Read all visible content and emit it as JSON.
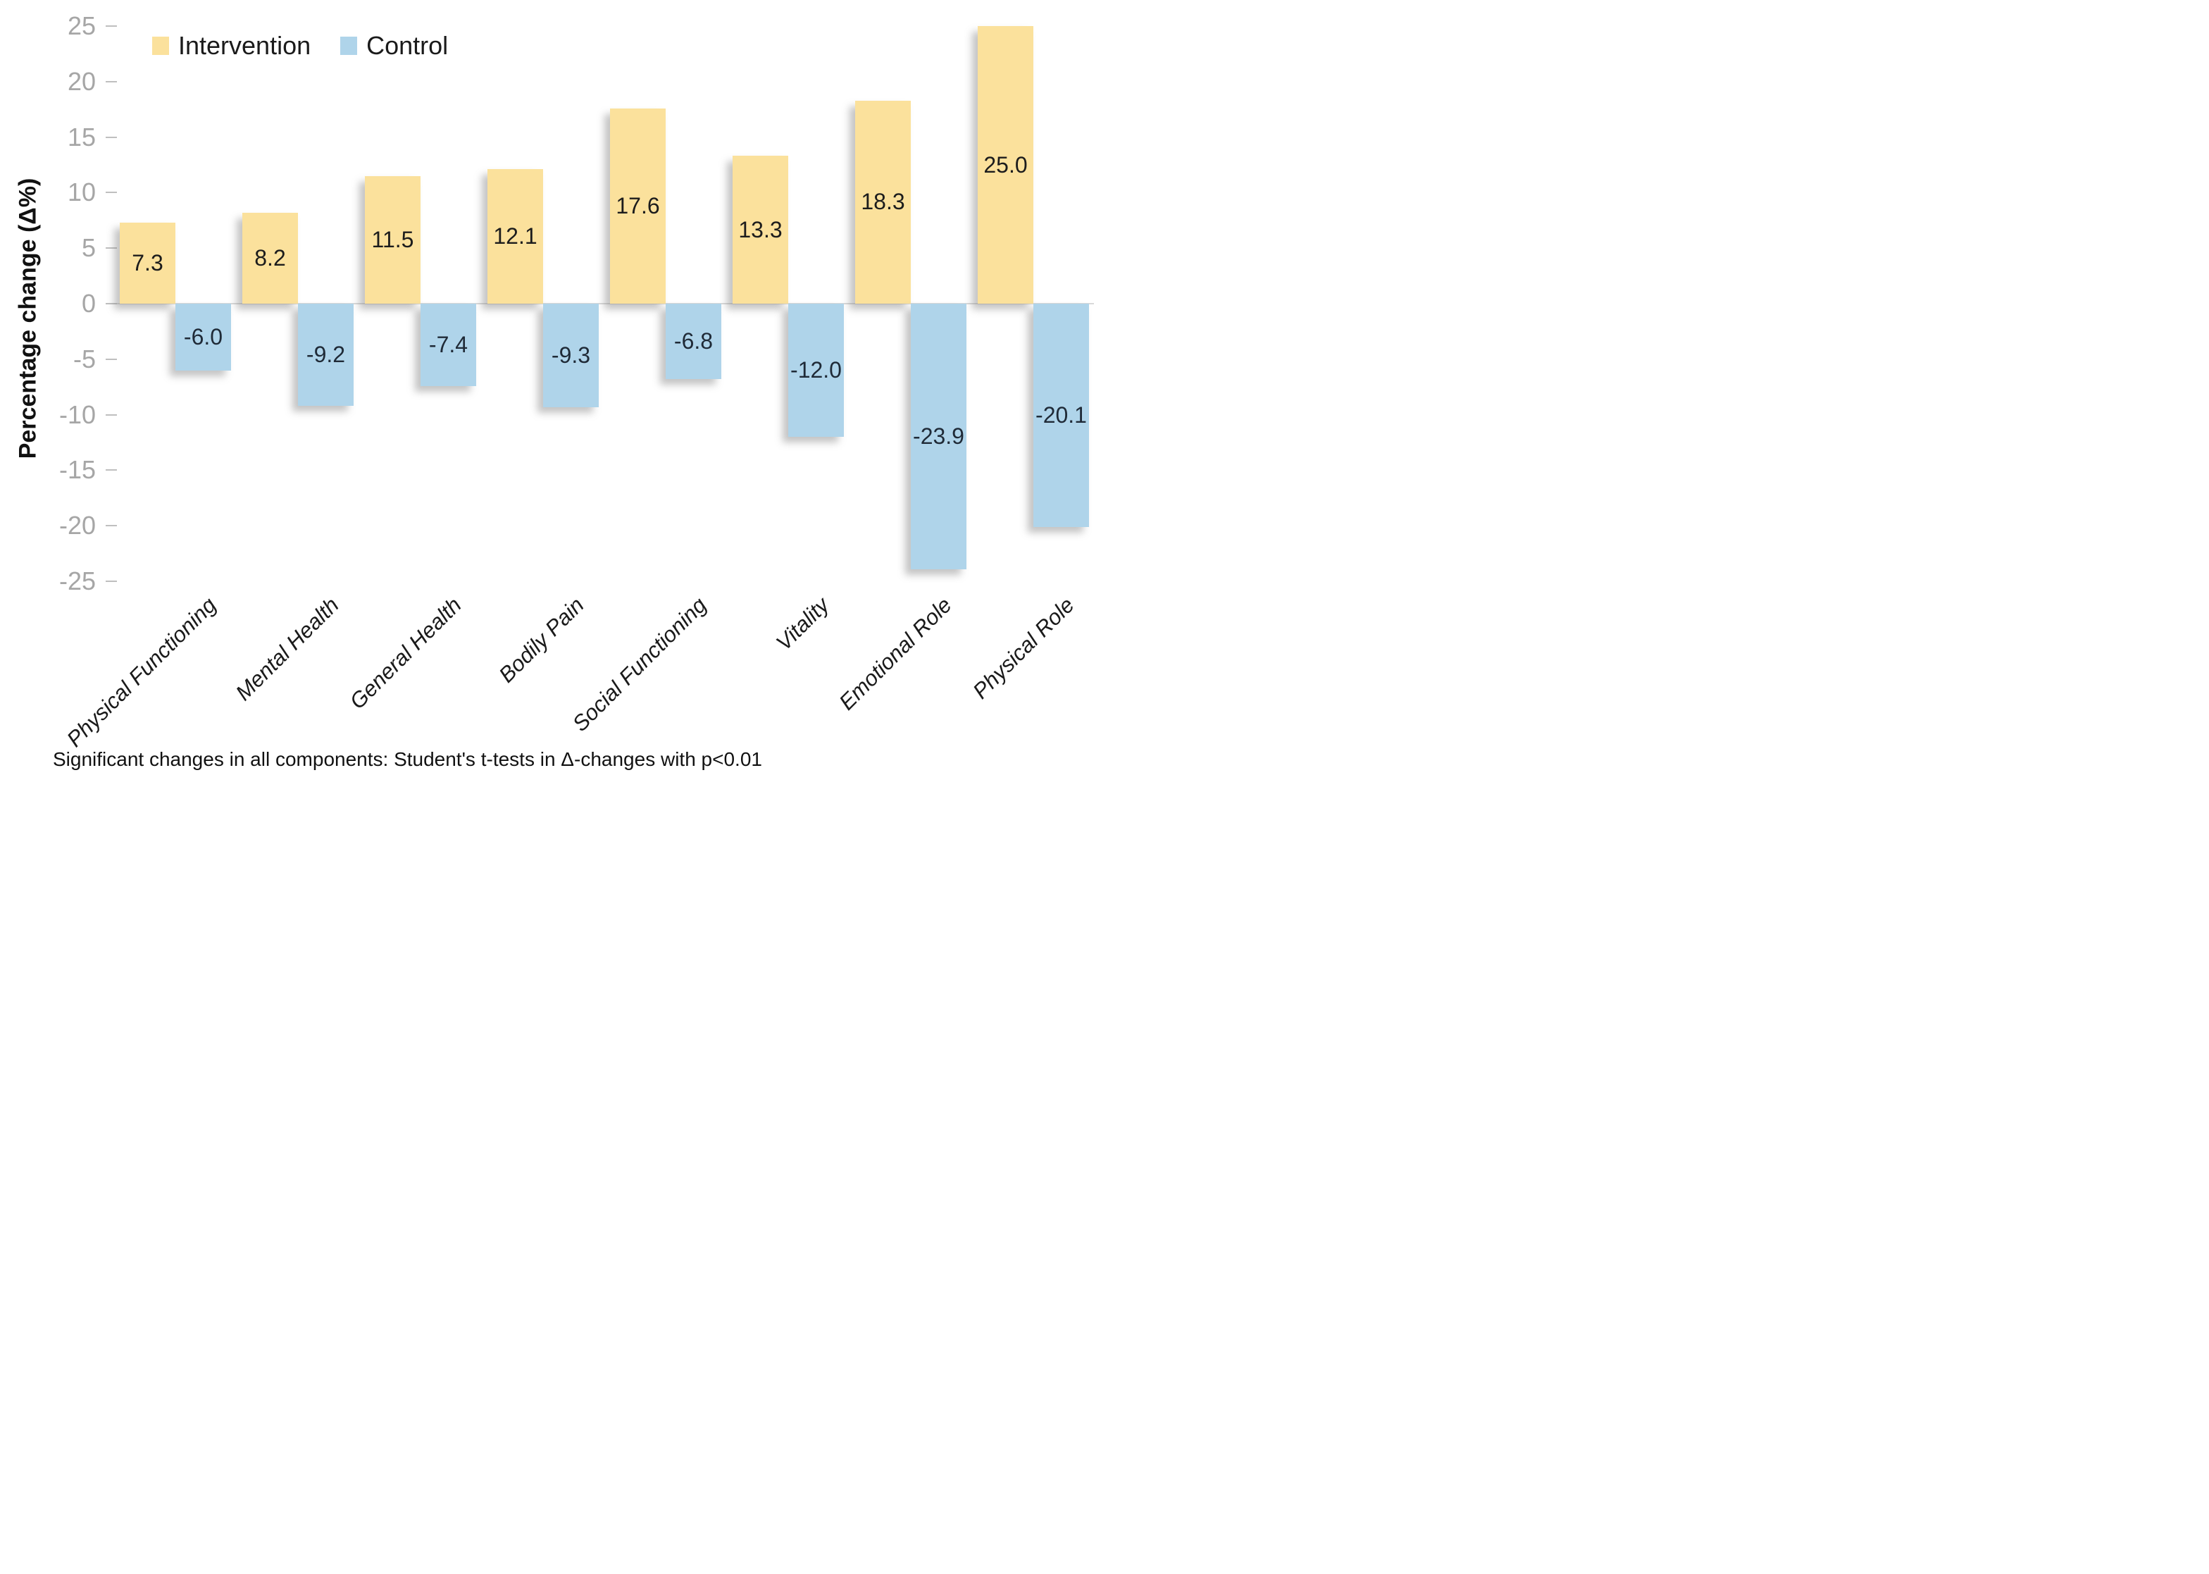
{
  "chart_data": {
    "type": "bar",
    "title": "",
    "ylabel": "Percentage change (Δ%)",
    "xlabel": "",
    "ylim": [
      -25,
      25
    ],
    "ytick_step": 5,
    "grid": false,
    "legend_position": "top-left",
    "categories": [
      "Physical Functioning",
      "Mental Health",
      "General Health",
      "Bodily Pain",
      "Social Functioning",
      "Vitality",
      "Emotional Role",
      "Physical Role"
    ],
    "series": [
      {
        "name": "Intervention",
        "color": "#FBE19C",
        "label_color": "#1c1c1c",
        "values": [
          7.3,
          8.2,
          11.5,
          12.1,
          17.6,
          13.3,
          18.3,
          25.0
        ]
      },
      {
        "name": "Control",
        "color": "#AFD4EA",
        "label_color": "#1f2a37",
        "values": [
          -6.0,
          -9.2,
          -7.4,
          -9.3,
          -6.8,
          -12.0,
          -23.9,
          -20.1
        ]
      }
    ],
    "footnote": "Significant changes in all components: Student's t-tests in Δ-changes with p<0.01",
    "axis": {
      "tick_color": "#A6A6A6",
      "line_color": "#D9D9D9",
      "category_color": "#1a1a1a"
    }
  }
}
